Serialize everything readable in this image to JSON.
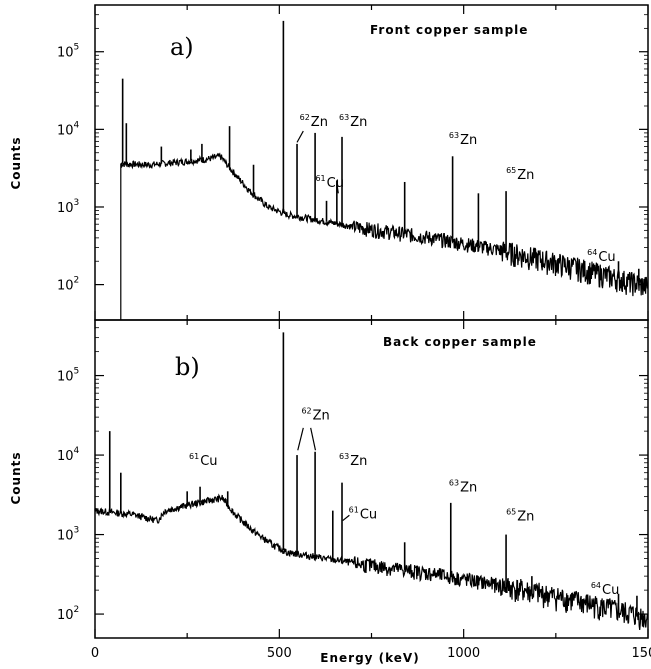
{
  "chart_data": [
    {
      "type": "line",
      "title": "Front copper sample",
      "panel": "a)",
      "ylabel": "Counts",
      "xlim": [
        0,
        1500
      ],
      "ylim": [
        35,
        400000
      ],
      "yscale": "log",
      "grid": false,
      "y_ticks": [
        {
          "base": "10",
          "exp": "2",
          "value": 100
        },
        {
          "base": "10",
          "exp": "3",
          "value": 1000
        },
        {
          "base": "10",
          "exp": "4",
          "value": 10000
        },
        {
          "base": "10",
          "exp": "5",
          "value": 100000
        }
      ],
      "baseline": [
        {
          "x": 70,
          "y": 3600
        },
        {
          "x": 150,
          "y": 3500
        },
        {
          "x": 230,
          "y": 3800
        },
        {
          "x": 300,
          "y": 4100
        },
        {
          "x": 340,
          "y": 4500
        },
        {
          "x": 370,
          "y": 3000
        },
        {
          "x": 420,
          "y": 1600
        },
        {
          "x": 470,
          "y": 1000
        },
        {
          "x": 520,
          "y": 800
        },
        {
          "x": 700,
          "y": 560
        },
        {
          "x": 900,
          "y": 410
        },
        {
          "x": 1100,
          "y": 280
        },
        {
          "x": 1300,
          "y": 170
        },
        {
          "x": 1500,
          "y": 95
        }
      ],
      "peaks": [
        {
          "x": 75,
          "y": 45000
        },
        {
          "x": 85,
          "y": 12000
        },
        {
          "x": 180,
          "y": 6000
        },
        {
          "x": 260,
          "y": 5500
        },
        {
          "x": 290,
          "y": 6500
        },
        {
          "x": 365,
          "y": 11000
        },
        {
          "x": 430,
          "y": 3500
        },
        {
          "x": 511,
          "y": 250000
        },
        {
          "x": 548,
          "y": 6500
        },
        {
          "x": 597,
          "y": 9000
        },
        {
          "x": 628,
          "y": 1200
        },
        {
          "x": 656,
          "y": 2200
        },
        {
          "x": 670,
          "y": 8000
        },
        {
          "x": 840,
          "y": 2100
        },
        {
          "x": 970,
          "y": 4500
        },
        {
          "x": 1040,
          "y": 1500
        },
        {
          "x": 1115,
          "y": 1600
        },
        {
          "x": 1190,
          "y": 290
        },
        {
          "x": 1350,
          "y": 160
        },
        {
          "x": 1420,
          "y": 200
        },
        {
          "x": 1475,
          "y": 160
        }
      ],
      "annotations": [
        {
          "sup": "62",
          "text": "Zn",
          "x": 555,
          "y": 11000
        },
        {
          "sup": "63",
          "text": "Zn",
          "x": 662,
          "y": 11000
        },
        {
          "sup": "61",
          "text": "Cu",
          "x": 598,
          "y": 1800
        },
        {
          "sup": "63",
          "text": "Zn",
          "x": 960,
          "y": 6500
        },
        {
          "sup": "65",
          "text": "Zn",
          "x": 1115,
          "y": 2300
        },
        {
          "sup": "64",
          "text": "Cu",
          "x": 1335,
          "y": 200
        }
      ]
    },
    {
      "type": "line",
      "title": "Back copper sample",
      "panel": "b)",
      "ylabel": "Counts",
      "xlabel": "Energy (keV)",
      "xlim": [
        0,
        1500
      ],
      "ylim": [
        50,
        500000
      ],
      "yscale": "log",
      "grid": false,
      "x_ticks": [
        {
          "label": "0",
          "value": 0
        },
        {
          "label": "500",
          "value": 500
        },
        {
          "label": "1000",
          "value": 1000
        },
        {
          "label": "1500",
          "value": 1500
        }
      ],
      "y_ticks": [
        {
          "base": "10",
          "exp": "2",
          "value": 100
        },
        {
          "base": "10",
          "exp": "3",
          "value": 1000
        },
        {
          "base": "10",
          "exp": "4",
          "value": 10000
        },
        {
          "base": "10",
          "exp": "5",
          "value": 100000
        }
      ],
      "baseline": [
        {
          "x": 0,
          "y": 2000
        },
        {
          "x": 100,
          "y": 1800
        },
        {
          "x": 170,
          "y": 1500
        },
        {
          "x": 190,
          "y": 2000
        },
        {
          "x": 260,
          "y": 2400
        },
        {
          "x": 330,
          "y": 2800
        },
        {
          "x": 345,
          "y": 2900
        },
        {
          "x": 380,
          "y": 1800
        },
        {
          "x": 430,
          "y": 1100
        },
        {
          "x": 480,
          "y": 750
        },
        {
          "x": 520,
          "y": 600
        },
        {
          "x": 700,
          "y": 440
        },
        {
          "x": 900,
          "y": 330
        },
        {
          "x": 1100,
          "y": 230
        },
        {
          "x": 1300,
          "y": 150
        },
        {
          "x": 1500,
          "y": 90
        }
      ],
      "peaks": [
        {
          "x": 40,
          "y": 20000
        },
        {
          "x": 70,
          "y": 6000
        },
        {
          "x": 250,
          "y": 3500
        },
        {
          "x": 285,
          "y": 4000
        },
        {
          "x": 360,
          "y": 3500
        },
        {
          "x": 511,
          "y": 350000
        },
        {
          "x": 548,
          "y": 10000
        },
        {
          "x": 597,
          "y": 11000
        },
        {
          "x": 645,
          "y": 2000
        },
        {
          "x": 670,
          "y": 4500
        },
        {
          "x": 840,
          "y": 800
        },
        {
          "x": 965,
          "y": 2500
        },
        {
          "x": 1115,
          "y": 1000
        },
        {
          "x": 1185,
          "y": 300
        },
        {
          "x": 1350,
          "y": 150
        },
        {
          "x": 1420,
          "y": 180
        },
        {
          "x": 1470,
          "y": 170
        }
      ],
      "annotations": [
        {
          "sup": "61",
          "text": "Cu",
          "x": 255,
          "y": 7500
        },
        {
          "sup": "62",
          "text": "Zn",
          "x": 560,
          "y": 28000
        },
        {
          "sup": "63",
          "text": "Zn",
          "x": 662,
          "y": 7500
        },
        {
          "sup": "61",
          "text": "Cu",
          "x": 688,
          "y": 1600
        },
        {
          "sup": "63",
          "text": "Zn",
          "x": 960,
          "y": 3500
        },
        {
          "sup": "65",
          "text": "Zn",
          "x": 1115,
          "y": 1500
        },
        {
          "sup": "64",
          "text": "Cu",
          "x": 1345,
          "y": 180
        }
      ]
    }
  ]
}
